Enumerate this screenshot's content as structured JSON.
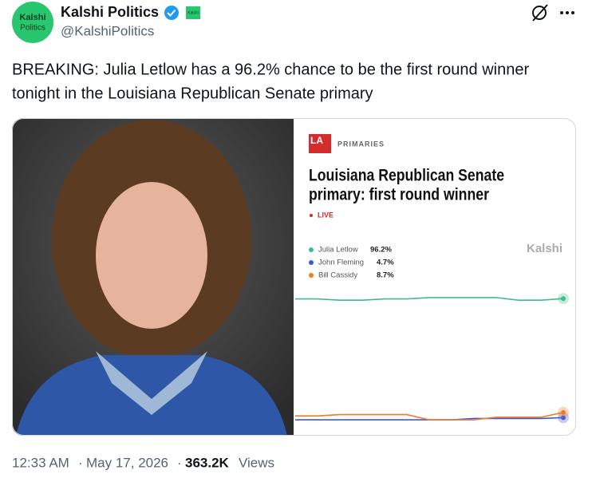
{
  "post": {
    "avatar_text": [
      "Kalshi",
      "Politics"
    ],
    "name": "Kalshi Politics",
    "badge": "Kalshi",
    "handle": "@KalshiPolitics",
    "text": [
      "BREAKING: Julia Letlow has a 96.2% chance to be the first round winner",
      "tonight in the Louisiana Republican Senate primary"
    ],
    "time": "12:33 AM",
    "date": "May 17, 2026",
    "views": "363.2K",
    "views_label": "Views"
  },
  "card": {
    "logo": "LA",
    "section": "PRIMARIES",
    "live": "LIVE",
    "brand": "Kalshi"
  },
  "chart_data": {
    "type": "line",
    "title": [
      "Louisiana Republican Senate",
      "primary: first round winner"
    ],
    "series": [
      {
        "name": "Julia Letlow",
        "color": "#3dbd8a",
        "values": [
          96,
          96,
          95,
          95,
          96,
          96,
          97,
          97,
          97,
          97,
          95,
          95,
          96.2
        ],
        "value_labels": [
          null,
          null,
          null,
          null,
          null,
          null,
          null,
          null,
          null,
          null,
          null,
          null,
          "96.2%"
        ]
      },
      {
        "name": "John Fleming",
        "color": "#3a5bd9",
        "values": [
          3,
          3,
          3,
          3,
          3,
          3,
          3,
          3,
          4,
          4,
          4,
          4,
          4.7
        ],
        "value_labels": [
          null,
          null,
          null,
          null,
          null,
          null,
          null,
          null,
          null,
          null,
          null,
          null,
          "4.7%"
        ]
      },
      {
        "name": "Bill Cassidy",
        "color": "#f07a2a",
        "values": [
          6,
          6,
          7,
          7,
          7,
          7,
          3,
          3,
          3,
          5,
          5,
          5,
          8.7
        ],
        "value_labels": [
          null,
          null,
          null,
          null,
          null,
          null,
          null,
          null,
          null,
          null,
          null,
          null,
          "8.7%"
        ]
      }
    ],
    "ylim": [
      0,
      100
    ]
  }
}
